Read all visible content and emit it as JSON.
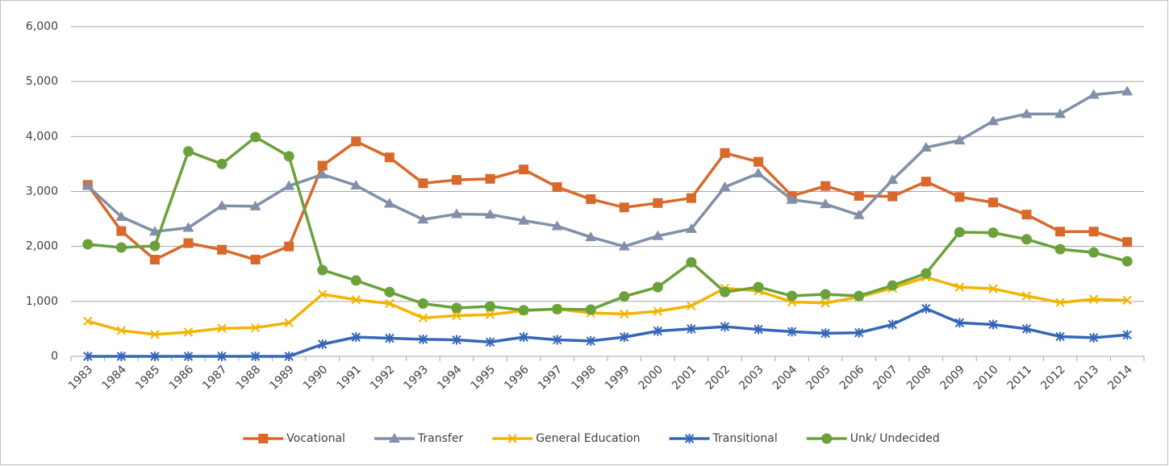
{
  "chart_data": {
    "type": "line",
    "categories": [
      "1983",
      "1984",
      "1985",
      "1986",
      "1987",
      "1988",
      "1989",
      "1990",
      "1991",
      "1992",
      "1993",
      "1994",
      "1995",
      "1996",
      "1997",
      "1998",
      "1999",
      "2000",
      "2001",
      "2002",
      "2003",
      "2004",
      "2005",
      "2006",
      "2007",
      "2008",
      "2009",
      "2010",
      "2011",
      "2012",
      "2013",
      "2014"
    ],
    "series": [
      {
        "name": "Vocational",
        "color": "#d8692a",
        "marker": "square",
        "values": [
          3120,
          2280,
          1760,
          2060,
          1940,
          1760,
          2000,
          3470,
          3910,
          3620,
          3150,
          3210,
          3230,
          3400,
          3080,
          2860,
          2710,
          2790,
          2880,
          3700,
          3540,
          2920,
          3100,
          2920,
          2910,
          3180,
          2900,
          2800,
          2580,
          2270,
          2270,
          2080
        ]
      },
      {
        "name": "Transfer",
        "color": "#8090a8",
        "marker": "triangle",
        "values": [
          3100,
          2540,
          2270,
          2340,
          2740,
          2730,
          3100,
          3310,
          3110,
          2780,
          2490,
          2590,
          2580,
          2470,
          2370,
          2170,
          2000,
          2190,
          2320,
          3080,
          3330,
          2850,
          2770,
          2570,
          3210,
          3800,
          3930,
          4280,
          4410,
          4410,
          4760,
          4820
        ]
      },
      {
        "name": "General Education",
        "color": "#f2b400",
        "marker": "x",
        "values": [
          640,
          470,
          400,
          440,
          510,
          520,
          610,
          1130,
          1030,
          960,
          700,
          740,
          760,
          830,
          860,
          790,
          770,
          820,
          920,
          1240,
          1190,
          990,
          970,
          1080,
          1240,
          1440,
          1260,
          1230,
          1100,
          980,
          1040,
          1020
        ]
      },
      {
        "name": "Transitional",
        "color": "#3566b8",
        "marker": "star",
        "values": [
          0,
          0,
          0,
          0,
          0,
          0,
          0,
          220,
          350,
          330,
          310,
          300,
          260,
          350,
          300,
          280,
          350,
          460,
          500,
          540,
          490,
          450,
          420,
          430,
          580,
          870,
          610,
          580,
          500,
          360,
          340,
          390
        ]
      },
      {
        "name": "Unk/ Undecided",
        "color": "#6ba13a",
        "marker": "circle",
        "values": [
          2040,
          1980,
          2010,
          3730,
          3500,
          3990,
          3640,
          1570,
          1380,
          1170,
          960,
          880,
          910,
          840,
          860,
          850,
          1090,
          1260,
          1710,
          1170,
          1260,
          1100,
          1130,
          1100,
          1290,
          1510,
          2260,
          2250,
          2130,
          1950,
          1890,
          1730
        ]
      }
    ],
    "ylim": [
      0,
      6000
    ],
    "yticks": [
      0,
      {
        "value": 1000,
        "label": "1,000"
      },
      {
        "value": 2000,
        "label": "2,000"
      },
      {
        "value": 3000,
        "label": "3,000"
      },
      {
        "value": 4000,
        "label": "4,000"
      },
      {
        "value": 5000,
        "label": "5,000"
      },
      {
        "value": 6000,
        "label": "6,000"
      }
    ],
    "grid": true,
    "legend": "bottom"
  }
}
